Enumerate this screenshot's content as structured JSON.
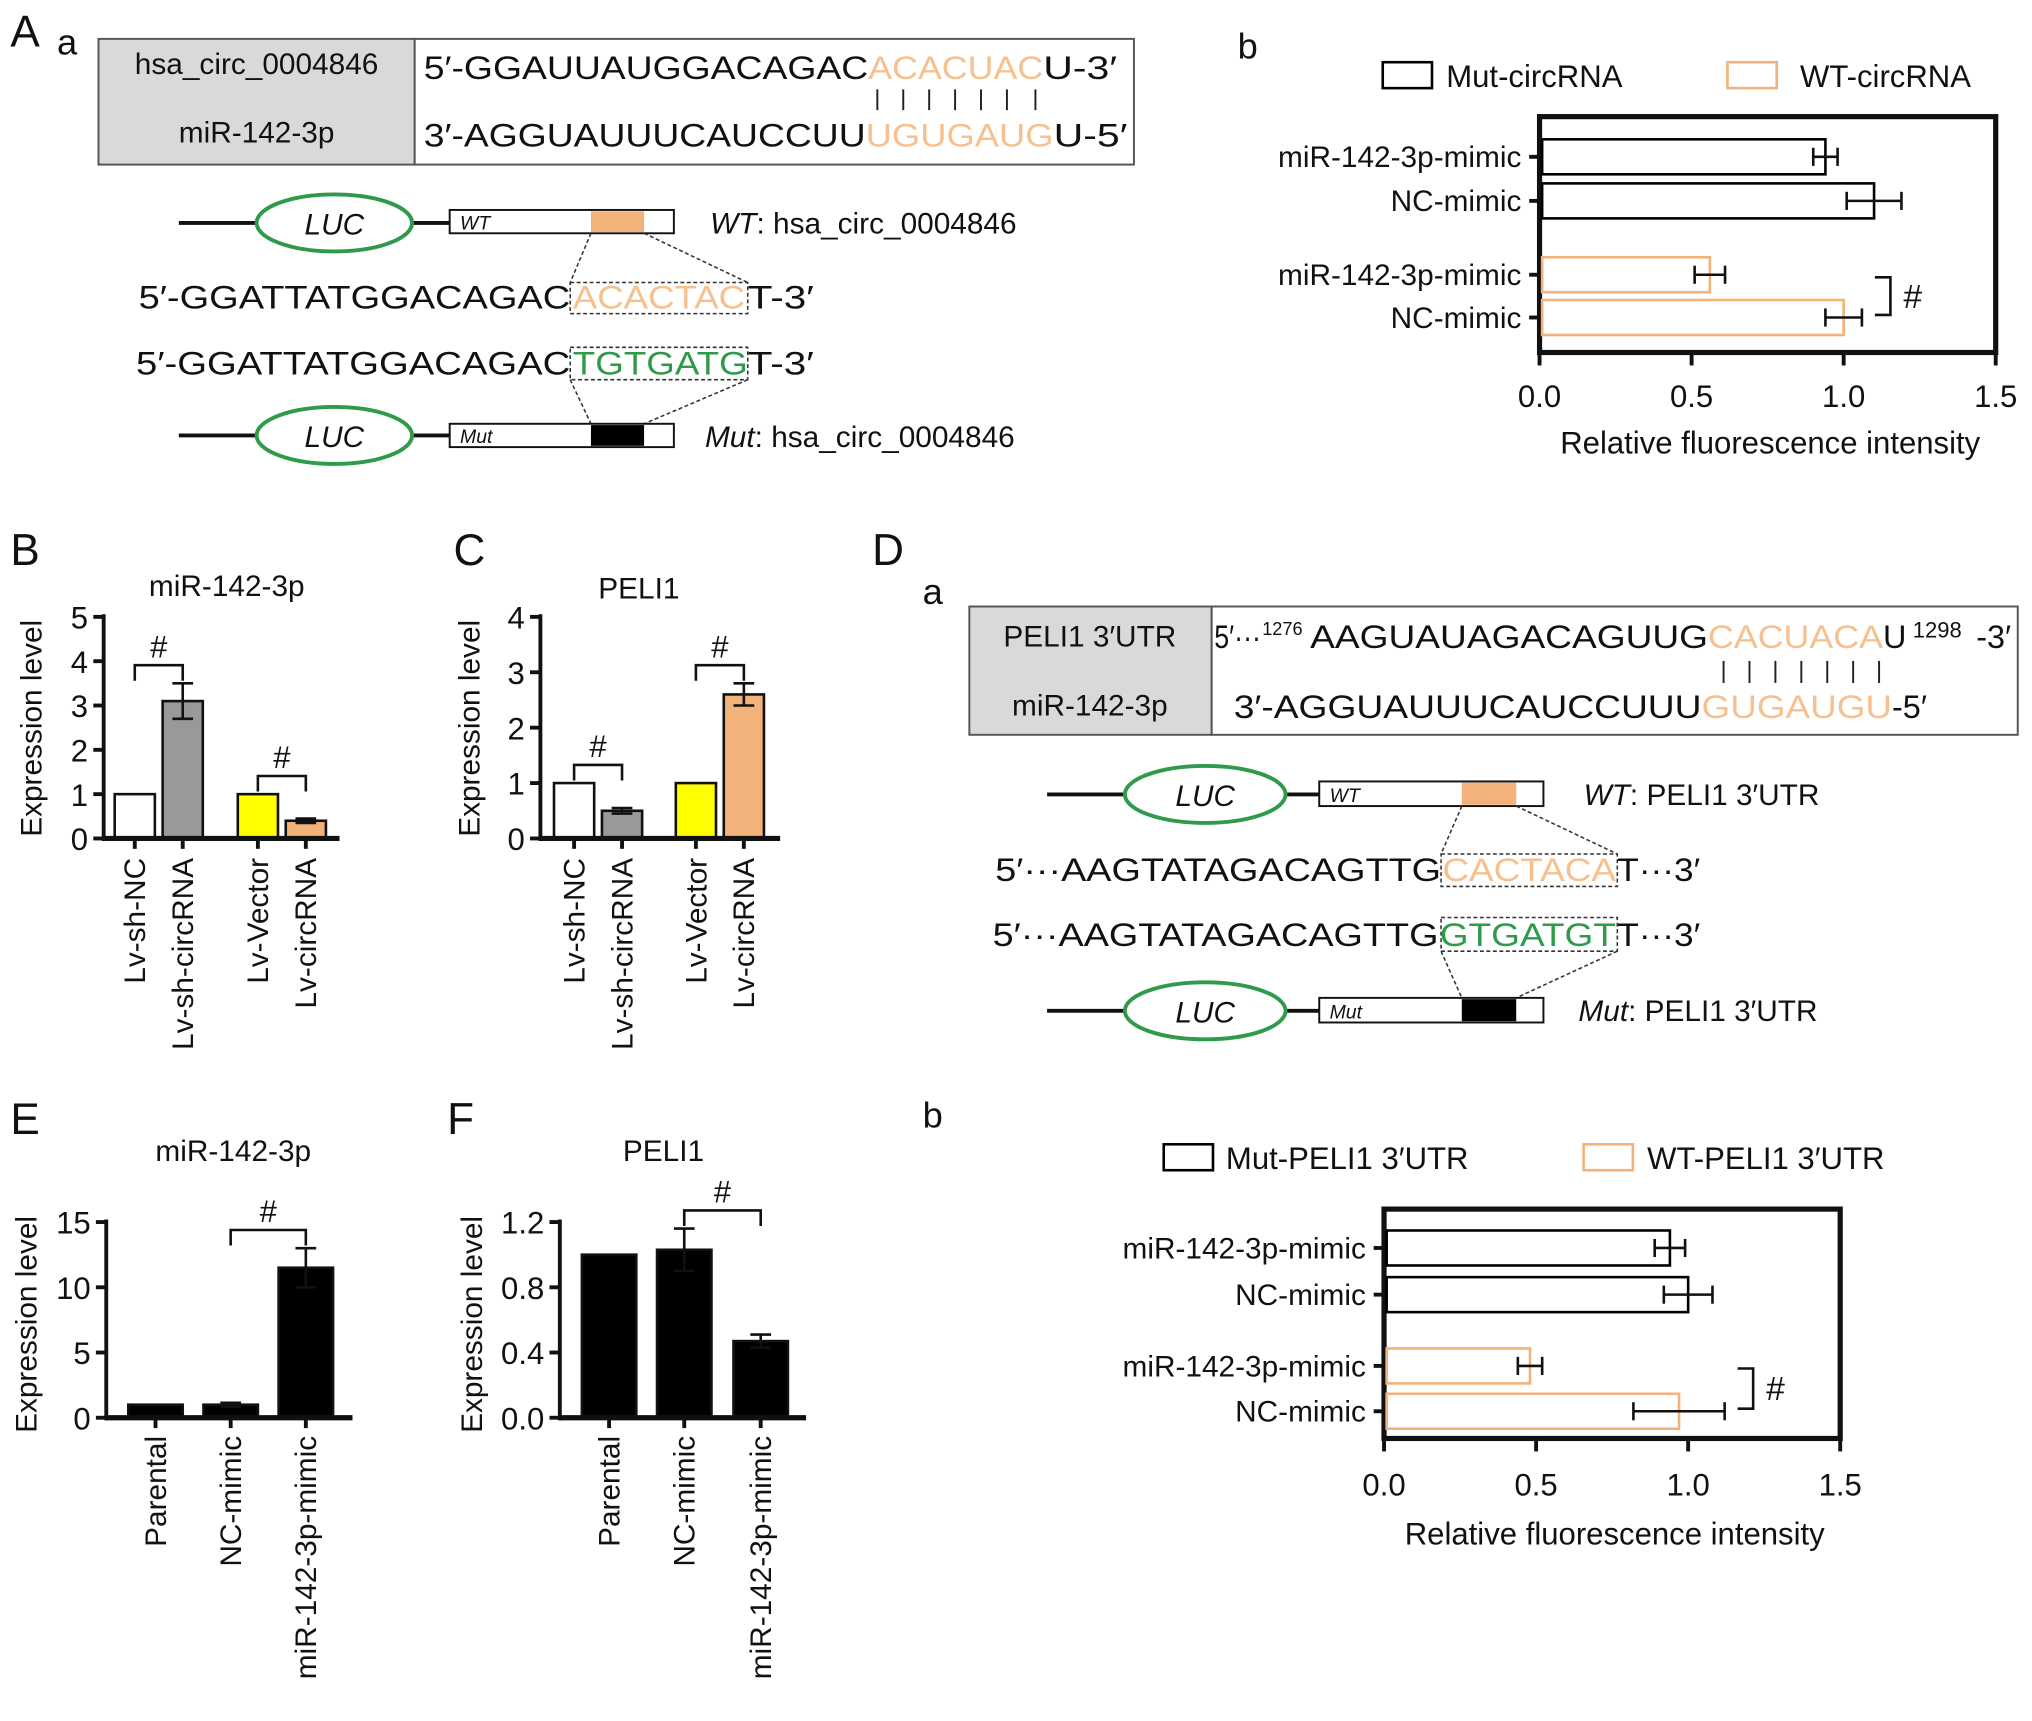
{
  "panels": {
    "A": "A",
    "Aa": "a",
    "Ab": "b",
    "B": "B",
    "C": "C",
    "D": "D",
    "Da": "a",
    "Db": "b",
    "E": "E",
    "F": "F"
  },
  "A_diagram": {
    "row1_label": "hsa_circ_0004846",
    "row2_label": "miR-142-3p",
    "seq1": {
      "pre": "5′-GGAUUAUGGACAGAC",
      "seed": "ACACUAC",
      "post": "U-3′"
    },
    "seq2": {
      "pre": "3′-AGGUAUUUCAUCCUU",
      "seed": "UGUGAUG",
      "post": "U-5′"
    },
    "luc": "LUC",
    "wt_tag": "WT",
    "mut_tag": "Mut",
    "wt_label_em": "WT",
    "wt_label": ": hsa_circ_0004846",
    "mut_label_em": "Mut",
    "mut_label": ": hsa_circ_0004846",
    "wt_dna": {
      "pre": "5′-GGATTATGGACAGAC",
      "seed": "ACACTAC",
      "post": "T-3′"
    },
    "mut_dna": {
      "pre": "5′-GGATTATGGACAGAC",
      "seed": "TGTGATG",
      "post": "T-3′"
    }
  },
  "D_diagram": {
    "row1_label": "PELI1 3′UTR",
    "row2_label": "miR-142-3p",
    "seq1": {
      "start": "5′···",
      "sup1": "1276",
      "pre": "AAGUAUAGACAGUUG",
      "seed": "CACUACA",
      "post": "U",
      "sup2": "1298",
      "end": "-3′"
    },
    "seq2": {
      "pre": "3′-AGGUAUUUCAUCCUUU",
      "seed": "GUGAUGU",
      "post": "-5′"
    },
    "luc": "LUC",
    "wt_tag": "WT",
    "mut_tag": "Mut",
    "wt_label_em": "WT",
    "wt_label": ": PELI1 3′UTR",
    "mut_label_em": "Mut",
    "mut_label": ": PELI1 3′UTR",
    "wt_dna": {
      "pre": "5′···AAGTATAGACAGTTG",
      "seed": "CACTACA",
      "post": "T···3′"
    },
    "mut_dna": {
      "pre": "5′···AAGTATAGACAGTTG",
      "seed": "GTGATGT",
      "post": "T···3′"
    }
  },
  "colors": {
    "seed_orange": "#F7C08F",
    "bar_orange": "#F2B27A",
    "green": "#2E9A4A",
    "yellow": "#FFFF00",
    "gray": "#999999"
  },
  "chart_data": [
    {
      "id": "Ab",
      "type": "bar",
      "orientation": "horizontal",
      "title": "",
      "xlabel": "Relative fluorescence intensity",
      "ylabel": "",
      "xlim": [
        0,
        1.5
      ],
      "xticks": [
        "0.0",
        "0.5",
        "1.0",
        "1.5"
      ],
      "legend": "top",
      "series": [
        {
          "name": "Mut-circRNA",
          "color": "#000000",
          "categories": [
            "miR-142-3p-mimic",
            "NC-mimic"
          ],
          "values": [
            0.94,
            1.1
          ],
          "errors": [
            0.04,
            0.09
          ]
        },
        {
          "name": "WT-circRNA",
          "color": "#F2B27A",
          "categories": [
            "miR-142-3p-mimic",
            "NC-mimic"
          ],
          "values": [
            0.56,
            1.0
          ],
          "errors": [
            0.05,
            0.06
          ]
        }
      ],
      "significance": [
        {
          "between": [
            2,
            3
          ],
          "label": "#"
        }
      ]
    },
    {
      "id": "B",
      "type": "bar",
      "orientation": "vertical",
      "title": "miR-142-3p",
      "ylabel": "Expression level",
      "xlabel": "",
      "ylim": [
        0,
        5
      ],
      "yticks": [
        "0",
        "1",
        "2",
        "3",
        "4",
        "5"
      ],
      "categories": [
        "Lv-sh-NC",
        "Lv-sh-circRNA",
        "Lv-Vector",
        "Lv-circRNA"
      ],
      "values": [
        1.0,
        3.1,
        1.0,
        0.4
      ],
      "errors": [
        0,
        0.4,
        0,
        0.05
      ],
      "colors": [
        "#FFFFFF",
        "#999999",
        "#FFFF00",
        "#F2B27A"
      ],
      "significance": [
        {
          "between": [
            0,
            1
          ],
          "label": "#"
        },
        {
          "between": [
            2,
            3
          ],
          "label": "#"
        }
      ]
    },
    {
      "id": "C",
      "type": "bar",
      "orientation": "vertical",
      "title": "PELI1",
      "ylabel": "Expression level",
      "xlabel": "",
      "ylim": [
        0,
        4
      ],
      "yticks": [
        "0",
        "1",
        "2",
        "3",
        "4"
      ],
      "categories": [
        "Lv-sh-NC",
        "Lv-sh-circRNA",
        "Lv-Vector",
        "Lv-circRNA"
      ],
      "values": [
        1.0,
        0.5,
        1.0,
        2.6
      ],
      "errors": [
        0,
        0.05,
        0,
        0.2
      ],
      "colors": [
        "#FFFFFF",
        "#999999",
        "#FFFF00",
        "#F2B27A"
      ],
      "significance": [
        {
          "between": [
            0,
            1
          ],
          "label": "#"
        },
        {
          "between": [
            2,
            3
          ],
          "label": "#"
        }
      ]
    },
    {
      "id": "Db",
      "type": "bar",
      "orientation": "horizontal",
      "title": "",
      "xlabel": "Relative fluorescence intensity",
      "ylabel": "",
      "xlim": [
        0,
        1.5
      ],
      "xticks": [
        "0.0",
        "0.5",
        "1.0",
        "1.5"
      ],
      "legend": "top",
      "series": [
        {
          "name": "Mut-PELI1 3′UTR",
          "color": "#000000",
          "categories": [
            "miR-142-3p-mimic",
            "NC-mimic"
          ],
          "values": [
            0.94,
            1.0
          ],
          "errors": [
            0.05,
            0.08
          ]
        },
        {
          "name": "WT-PELI1 3′UTR",
          "color": "#F2B27A",
          "categories": [
            "miR-142-3p-mimic",
            "NC-mimic"
          ],
          "values": [
            0.48,
            0.97
          ],
          "errors": [
            0.04,
            0.15
          ]
        }
      ],
      "significance": [
        {
          "between": [
            2,
            3
          ],
          "label": "#"
        }
      ]
    },
    {
      "id": "E",
      "type": "bar",
      "orientation": "vertical",
      "title": "miR-142-3p",
      "ylabel": "Expression level",
      "xlabel": "",
      "ylim": [
        0,
        15
      ],
      "yticks": [
        "0",
        "5",
        "10",
        "15"
      ],
      "categories": [
        "Parental",
        "NC-mimic",
        "miR-142-3p-mimic"
      ],
      "values": [
        1.0,
        1.0,
        11.5
      ],
      "errors": [
        0,
        0.15,
        1.5
      ],
      "colors": [
        "#000000",
        "#000000",
        "#000000"
      ],
      "significance": [
        {
          "between": [
            1,
            2
          ],
          "label": "#"
        }
      ]
    },
    {
      "id": "F",
      "type": "bar",
      "orientation": "vertical",
      "title": "PELI1",
      "ylabel": "Expression level",
      "xlabel": "",
      "ylim": [
        0,
        1.2
      ],
      "yticks": [
        "0.0",
        "0.4",
        "0.8",
        "1.2"
      ],
      "categories": [
        "Parental",
        "NC-mimic",
        "miR-142-3p-mimic"
      ],
      "values": [
        1.0,
        1.03,
        0.47
      ],
      "errors": [
        0,
        0.13,
        0.04
      ],
      "colors": [
        "#000000",
        "#000000",
        "#000000"
      ],
      "significance": [
        {
          "between": [
            1,
            2
          ],
          "label": "#"
        }
      ]
    }
  ]
}
